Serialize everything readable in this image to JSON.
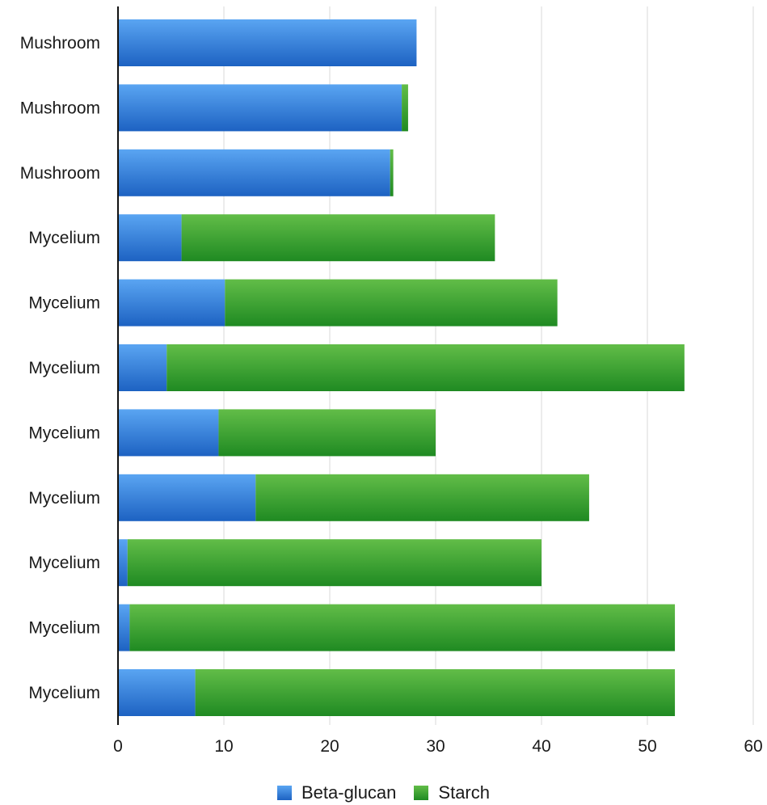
{
  "chart_data": {
    "type": "bar",
    "orientation": "horizontal",
    "stacked": true,
    "categories": [
      "Mushroom",
      "Mushroom",
      "Mushroom",
      "Mycelium",
      "Mycelium",
      "Mycelium",
      "Mycelium",
      "Mycelium",
      "Mycelium",
      "Mycelium",
      "Mycelium"
    ],
    "series": [
      {
        "name": "Beta-glucan",
        "color": "#2f7fdc",
        "values": [
          28.2,
          26.8,
          25.7,
          6.0,
          10.1,
          4.6,
          9.5,
          13.0,
          0.9,
          1.1,
          7.3
        ]
      },
      {
        "name": "Starch",
        "color": "#3aa33a",
        "values": [
          0.0,
          0.6,
          0.3,
          29.6,
          31.4,
          48.9,
          20.5,
          31.5,
          39.1,
          51.5,
          45.3
        ]
      }
    ],
    "xlim": [
      0,
      60
    ],
    "xticks": [
      "0",
      "10",
      "20",
      "30",
      "40",
      "50",
      "60"
    ],
    "grid": "vertical",
    "legend_position": "bottom-center"
  }
}
